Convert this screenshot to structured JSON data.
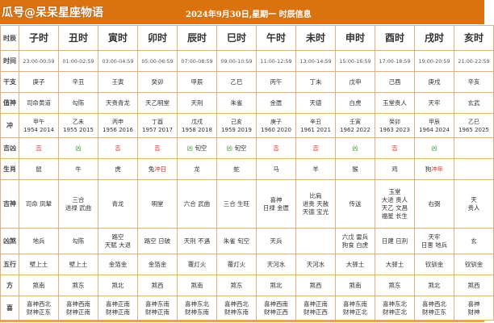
{
  "header": {
    "brand": "瓜号@呆呆星座物语",
    "title": "2024年9月30日,星期一 时辰信息",
    "accent_color": "#d9720f"
  },
  "row_labels": [
    "时辰",
    "时间",
    "干支",
    "值神",
    "冲",
    "吉凶",
    "生肖",
    "吉神",
    "凶煞",
    "五行",
    "方",
    "喜"
  ],
  "colors": {
    "ji": "#e0302a",
    "xiong": "#3a9a3a",
    "border": "#e3b27a"
  },
  "columns": [
    {
      "name": "子时",
      "time": "23:00-00:59",
      "ganzhi": "庚子",
      "zhishen": "司命黄道",
      "chong": [
        "甲午",
        "1954 2014"
      ],
      "jixiong": "吉",
      "jixiong_type": "ji",
      "kongwang": "",
      "shengxiao": "鼠",
      "shengxiao_chong": "",
      "jishen": [
        "司命 凤辇"
      ],
      "xiongsha": [
        "地兵"
      ],
      "wuxing": "壁上土",
      "fang": "煞南",
      "xi": [
        "喜神西北",
        "财神正东"
      ]
    },
    {
      "name": "丑时",
      "time": "01:00-02:59",
      "ganzhi": "辛丑",
      "zhishen": "勾陈",
      "chong": [
        "乙未",
        "1955 2015"
      ],
      "jixiong": "凶",
      "jixiong_type": "xiong",
      "kongwang": "",
      "shengxiao": "牛",
      "shengxiao_chong": "",
      "jishen": [
        "三合",
        "进禄 武曲"
      ],
      "xiongsha": [
        "勾陈"
      ],
      "wuxing": "壁上土",
      "fang": "煞东",
      "xi": [
        "喜神西南",
        "财神正南"
      ]
    },
    {
      "name": "寅时",
      "time": "03:00-04:59",
      "ganzhi": "壬寅",
      "zhishen": "天贵青龙",
      "chong": [
        "丙申",
        "1956 2016"
      ],
      "jixiong": "吉",
      "jixiong_type": "ji",
      "kongwang": "",
      "shengxiao": "虎",
      "shengxiao_chong": "",
      "jishen": [
        "青龙"
      ],
      "xiongsha": [
        "路空",
        "天赋 大退"
      ],
      "wuxing": "金箔金",
      "fang": "煞北",
      "xi": [
        "喜神正南",
        "财神正南"
      ]
    },
    {
      "name": "卯时",
      "time": "05:00-06:59",
      "ganzhi": "癸卯",
      "zhishen": "天乙明堂",
      "chong": [
        "丁酉",
        "1957 2017"
      ],
      "jixiong": "吉",
      "jixiong_type": "ji",
      "kongwang": "",
      "shengxiao": "兔",
      "shengxiao_chong": "冲日",
      "jishen": [
        "明堂"
      ],
      "xiongsha": [
        "路空 日破"
      ],
      "wuxing": "金箔金",
      "fang": "煞西",
      "xi": [
        "喜神东南",
        "财神正南"
      ]
    },
    {
      "name": "辰时",
      "time": "07:00-08:59",
      "ganzhi": "甲辰",
      "zhishen": "天刑",
      "chong": [
        "戊戌",
        "1958 2018"
      ],
      "jixiong": "凶",
      "jixiong_type": "xiong",
      "kongwang": "旬空",
      "shengxiao": "龙",
      "shengxiao_chong": "",
      "jishen": [
        "六合 武曲"
      ],
      "xiongsha": [
        "天刑 不遇"
      ],
      "wuxing": "覆灯火",
      "fang": "煞南",
      "xi": [
        "喜神东北",
        "财神东南"
      ]
    },
    {
      "name": "巳时",
      "time": "09:00-10:59",
      "ganzhi": "乙巳",
      "zhishen": "朱雀",
      "chong": [
        "己亥",
        "1959 2019"
      ],
      "jixiong": "凶",
      "jixiong_type": "xiong",
      "kongwang": "旬空",
      "shengxiao": "蛇",
      "shengxiao_chong": "",
      "jishen": [
        "三合 生旺"
      ],
      "xiongsha": [
        "朱雀 旬空"
      ],
      "wuxing": "覆灯火",
      "fang": "煞东",
      "xi": [
        "喜神西北",
        "财神东南"
      ]
    },
    {
      "name": "午时",
      "time": "11:00-12:59",
      "ganzhi": "丙午",
      "zhishen": "金匮",
      "chong": [
        "庚子",
        "1960 2020"
      ],
      "jixiong": "吉",
      "jixiong_type": "ji",
      "kongwang": "",
      "shengxiao": "马",
      "shengxiao_chong": "",
      "jishen": [
        "喜神",
        "日禄 金匮"
      ],
      "xiongsha": [
        "天兵"
      ],
      "wuxing": "天河水",
      "fang": "煞北",
      "xi": [
        "喜神西南",
        "财神正西"
      ]
    },
    {
      "name": "未时",
      "time": "13:00-14:59",
      "ganzhi": "丁未",
      "zhishen": "天德",
      "chong": [
        "辛丑",
        "1961 2021"
      ],
      "jixiong": "吉",
      "jixiong_type": "ji",
      "kongwang": "",
      "shengxiao": "羊",
      "shengxiao_chong": "",
      "jishen": [
        "比肩",
        "进贵 天赦",
        "天德 宝光"
      ],
      "xiongsha": [],
      "wuxing": "天河水",
      "fang": "煞西",
      "xi": [
        "喜神正南",
        "财神正西"
      ]
    },
    {
      "name": "申时",
      "time": "15:00-16:59",
      "ganzhi": "戊申",
      "zhishen": "白虎",
      "chong": [
        "壬寅",
        "1962 2022"
      ],
      "jixiong": "凶",
      "jixiong_type": "xiong",
      "kongwang": "",
      "shengxiao": "猴",
      "shengxiao_chong": "",
      "jishen": [
        "传送"
      ],
      "xiongsha": [
        "六戊 雷兵",
        "狗食 白虎"
      ],
      "wuxing": "大驿土",
      "fang": "煞南",
      "xi": [
        "喜神东南",
        "财神正北"
      ]
    },
    {
      "name": "酉时",
      "time": "17:00-18:59",
      "ganzhi": "己酉",
      "zhishen": "玉堂贵人",
      "chong": [
        "癸卯",
        "1963 2023"
      ],
      "jixiong": "吉",
      "jixiong_type": "ji",
      "kongwang": "",
      "shengxiao": "鸡",
      "shengxiao_chong": "",
      "jishen": [
        "玉堂",
        "大进 贵人",
        "天乙 文昌",
        "福星 长生"
      ],
      "xiongsha": [
        "日建 日刑"
      ],
      "wuxing": "大驿土",
      "fang": "煞东",
      "xi": [
        "喜神东北",
        "财神正北"
      ]
    },
    {
      "name": "戌时",
      "time": "19:00-20:59",
      "ganzhi": "庚戌",
      "zhishen": "天牢",
      "chong": [
        "甲辰",
        "1964 2024"
      ],
      "jixiong": "凶",
      "jixiong_type": "xiong",
      "kongwang": "",
      "shengxiao": "狗",
      "shengxiao_chong": "冲年",
      "jishen": [
        "右弼"
      ],
      "xiongsha": [
        "天牢",
        "日害 地兵"
      ],
      "wuxing": "钗钏金",
      "fang": "煞北",
      "xi": [
        "喜神西北",
        "财神正东"
      ]
    },
    {
      "name": "亥时",
      "time": "21:00-22:59",
      "ganzhi": "辛亥",
      "zhishen": "玄武",
      "chong": [
        "乙巳",
        "1965 2025"
      ],
      "jixiong": "",
      "jixiong_type": "xiong",
      "kongwang": "",
      "shengxiao": "",
      "shengxiao_chong": "",
      "jishen": [
        "天",
        "贵人"
      ],
      "xiongsha": [
        "玄"
      ],
      "wuxing": "钗钏金",
      "fang": "煞西",
      "xi": [
        "喜神",
        "财神"
      ]
    }
  ]
}
